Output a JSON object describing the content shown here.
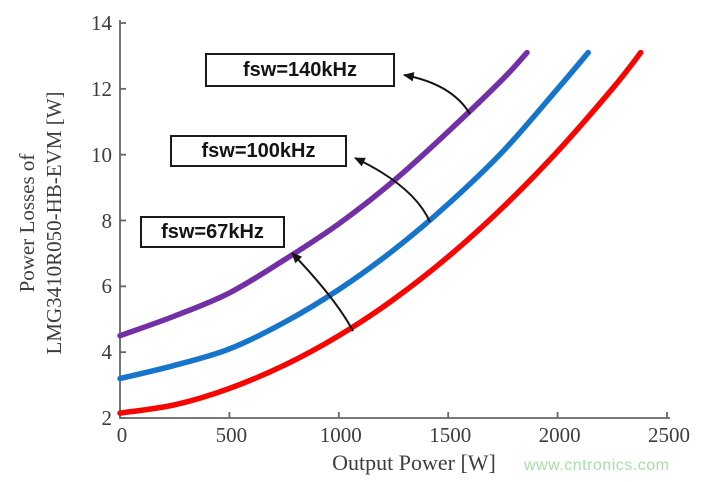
{
  "watermark": "www.cntronics.com",
  "watermark_color": "#a6dfa6",
  "annotations": [
    {
      "id": "fsw140",
      "label": "fsw=140kHz"
    },
    {
      "id": "fsw100",
      "label": "fsw=100kHz"
    },
    {
      "id": "fsw67",
      "label": "fsw=67kHz"
    }
  ],
  "chart_data": {
    "type": "line",
    "title": "",
    "xlabel": "Output Power [W]",
    "ylabel_line1": "Power Losses of",
    "ylabel_line2": "LMG3410R050-HB-EVM [W]",
    "xlim": [
      0,
      2500
    ],
    "ylim": [
      2,
      14
    ],
    "xticks": [
      0,
      500,
      1000,
      1500,
      2000,
      2500
    ],
    "yticks": [
      2,
      4,
      6,
      8,
      10,
      12,
      14
    ],
    "grid": false,
    "legend_position": "boxed arrow annotations inside plot",
    "axis_color": "#666666",
    "text_color": "#3d3d3d",
    "series": [
      {
        "name": "fsw=67kHz",
        "color": "#f70500",
        "x": [
          0,
          250,
          500,
          750,
          1000,
          1250,
          1500,
          1750,
          2000,
          2250,
          2380
        ],
        "y": [
          2.15,
          2.4,
          2.9,
          3.6,
          4.5,
          5.6,
          6.9,
          8.4,
          10.1,
          12.0,
          13.1
        ]
      },
      {
        "name": "fsw=100kHz",
        "color": "#1575cb",
        "x": [
          0,
          250,
          500,
          750,
          1000,
          1250,
          1500,
          1750,
          2000,
          2140
        ],
        "y": [
          3.2,
          3.6,
          4.1,
          4.9,
          5.9,
          7.1,
          8.5,
          10.1,
          12.0,
          13.1
        ]
      },
      {
        "name": "fsw=140kHz",
        "color": "#7330a6",
        "x": [
          0,
          250,
          500,
          750,
          1000,
          1250,
          1500,
          1750,
          1860
        ],
        "y": [
          4.5,
          5.1,
          5.8,
          6.8,
          7.9,
          9.2,
          10.7,
          12.3,
          13.1
        ]
      }
    ]
  }
}
